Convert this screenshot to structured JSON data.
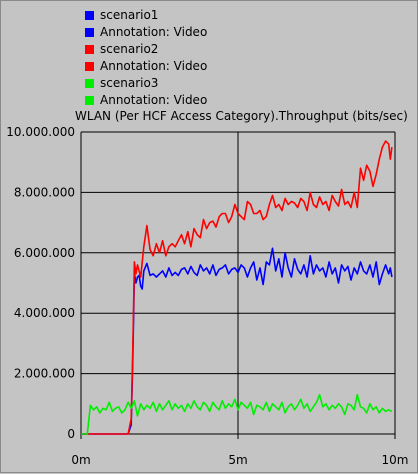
{
  "legend": [
    {
      "label": "scenario1",
      "color": "#0000ff"
    },
    {
      "label": "Annotation: Video",
      "color": "#0000ff"
    },
    {
      "label": "scenario2",
      "color": "#ff0000"
    },
    {
      "label": "Annotation: Video",
      "color": "#ff0000"
    },
    {
      "label": "scenario3",
      "color": "#00ee00"
    },
    {
      "label": "Annotation: Video",
      "color": "#00ee00"
    }
  ],
  "chart_data": {
    "type": "line",
    "title": "WLAN (Per HCF Access Category).Throughput (bits/sec)",
    "xlabel": "",
    "ylabel": "",
    "xlim": [
      0,
      10
    ],
    "ylim": [
      0,
      10000000
    ],
    "x_ticks": [
      0,
      5,
      10
    ],
    "x_tick_labels": [
      "0m",
      "5m",
      "10m"
    ],
    "y_ticks": [
      0,
      2000000,
      4000000,
      6000000,
      8000000,
      10000000
    ],
    "y_tick_labels": [
      "0",
      "2.000.000",
      "4.000.000",
      "6.000.000",
      "8.000.000",
      "10.000.000"
    ],
    "grid": true,
    "series": [
      {
        "name": "scenario1",
        "color": "#0000ff",
        "x": [
          0,
          1.5,
          1.6,
          1.65,
          1.7,
          1.75,
          1.8,
          1.85,
          1.9,
          1.95,
          2.0,
          2.1,
          2.2,
          2.3,
          2.4,
          2.5,
          2.6,
          2.7,
          2.8,
          2.9,
          3.0,
          3.1,
          3.2,
          3.3,
          3.4,
          3.5,
          3.6,
          3.7,
          3.8,
          3.9,
          4.0,
          4.1,
          4.2,
          4.3,
          4.4,
          4.5,
          4.6,
          4.7,
          4.8,
          4.9,
          5.0,
          5.1,
          5.2,
          5.3,
          5.4,
          5.5,
          5.6,
          5.7,
          5.8,
          5.9,
          6.0,
          6.1,
          6.2,
          6.3,
          6.4,
          6.5,
          6.6,
          6.7,
          6.8,
          6.9,
          7.0,
          7.1,
          7.2,
          7.3,
          7.4,
          7.5,
          7.6,
          7.7,
          7.8,
          7.9,
          8.0,
          8.1,
          8.2,
          8.3,
          8.4,
          8.5,
          8.6,
          8.7,
          8.8,
          8.9,
          9.0,
          9.1,
          9.2,
          9.3,
          9.4,
          9.5,
          9.6,
          9.7,
          9.8,
          9.85,
          9.9
        ],
        "values": [
          0,
          0,
          300000,
          2500000,
          5300000,
          5000000,
          5200000,
          5250000,
          4900000,
          4800000,
          5400000,
          5650000,
          5250000,
          5300000,
          5200000,
          5300000,
          5400000,
          5200000,
          5500000,
          5250000,
          5350000,
          5250000,
          5450000,
          5500000,
          5300000,
          5550000,
          5350000,
          5250000,
          5600000,
          5400000,
          5500000,
          5300000,
          5600000,
          5250000,
          5450000,
          5500000,
          5600000,
          5300000,
          5450000,
          5500000,
          5350000,
          5600000,
          5500000,
          5200000,
          5500000,
          5700000,
          5100000,
          5500000,
          4950000,
          5700000,
          5600000,
          6150000,
          5400000,
          5800000,
          5200000,
          6000000,
          5500000,
          5200000,
          5800000,
          5450000,
          5300000,
          5600000,
          5200000,
          5900000,
          5300000,
          5600000,
          5400000,
          5500000,
          5200000,
          5700000,
          5300000,
          5500000,
          5000000,
          5600000,
          5400000,
          5550000,
          5100000,
          5500000,
          5300000,
          5700000,
          5400000,
          5300000,
          5600000,
          5200000,
          5700000,
          4950000,
          5300000,
          5600000,
          5300000,
          5500000,
          5200000
        ]
      },
      {
        "name": "scenario2",
        "color": "#ff0000",
        "x": [
          0,
          1.5,
          1.6,
          1.65,
          1.7,
          1.75,
          1.8,
          1.85,
          1.9,
          2.0,
          2.1,
          2.2,
          2.3,
          2.4,
          2.5,
          2.6,
          2.7,
          2.8,
          2.9,
          3.0,
          3.1,
          3.2,
          3.3,
          3.4,
          3.5,
          3.6,
          3.7,
          3.8,
          3.9,
          4.0,
          4.1,
          4.2,
          4.3,
          4.4,
          4.5,
          4.6,
          4.7,
          4.8,
          4.9,
          5.0,
          5.1,
          5.2,
          5.3,
          5.4,
          5.5,
          5.6,
          5.7,
          5.8,
          5.9,
          6.0,
          6.1,
          6.2,
          6.3,
          6.4,
          6.5,
          6.6,
          6.7,
          6.8,
          6.9,
          7.0,
          7.1,
          7.2,
          7.3,
          7.4,
          7.5,
          7.6,
          7.7,
          7.8,
          7.9,
          8.0,
          8.1,
          8.2,
          8.3,
          8.4,
          8.5,
          8.6,
          8.7,
          8.8,
          8.9,
          9.0,
          9.1,
          9.2,
          9.3,
          9.4,
          9.5,
          9.6,
          9.7,
          9.8,
          9.85,
          9.9
        ],
        "values": [
          0,
          0,
          500000,
          2800000,
          5700000,
          5300000,
          5600000,
          5400000,
          5200000,
          6200000,
          6900000,
          6100000,
          5900000,
          6300000,
          6000000,
          6400000,
          5900000,
          6200000,
          6300000,
          6200000,
          6400000,
          6600000,
          6300000,
          6700000,
          6200000,
          6800000,
          6600000,
          6500000,
          7100000,
          6800000,
          7000000,
          7050000,
          6850000,
          7200000,
          7300000,
          7300000,
          7000000,
          7200000,
          7600000,
          7300000,
          7200000,
          7100000,
          7700000,
          7600000,
          7300000,
          7300000,
          7400000,
          7100000,
          7200000,
          7600000,
          7900000,
          7500000,
          7600000,
          7400000,
          7800000,
          7600000,
          7700000,
          7650000,
          7500000,
          7800000,
          7700000,
          7400000,
          8000000,
          7600000,
          7500000,
          7850000,
          7600000,
          7700000,
          7400000,
          7900000,
          7700000,
          7550000,
          8100000,
          7600000,
          7700000,
          7500000,
          8000000,
          7500000,
          8800000,
          8400000,
          8900000,
          8700000,
          8200000,
          8600000,
          9100000,
          9500000,
          9700000,
          9600000,
          9100000,
          9500000
        ]
      },
      {
        "name": "scenario3",
        "color": "#00ee00",
        "x": [
          0,
          0.2,
          0.3,
          0.4,
          0.5,
          0.6,
          0.7,
          0.8,
          0.9,
          1.0,
          1.1,
          1.2,
          1.3,
          1.4,
          1.5,
          1.6,
          1.7,
          1.8,
          1.9,
          2.0,
          2.1,
          2.2,
          2.3,
          2.4,
          2.5,
          2.6,
          2.7,
          2.8,
          2.9,
          3.0,
          3.1,
          3.2,
          3.3,
          3.4,
          3.5,
          3.6,
          3.7,
          3.8,
          3.9,
          4.0,
          4.1,
          4.2,
          4.3,
          4.4,
          4.5,
          4.6,
          4.7,
          4.8,
          4.9,
          5.0,
          5.1,
          5.2,
          5.3,
          5.4,
          5.5,
          5.6,
          5.7,
          5.8,
          5.9,
          6.0,
          6.1,
          6.2,
          6.3,
          6.4,
          6.5,
          6.6,
          6.7,
          6.8,
          6.9,
          7.0,
          7.1,
          7.2,
          7.3,
          7.4,
          7.5,
          7.6,
          7.7,
          7.8,
          7.9,
          8.0,
          8.1,
          8.2,
          8.3,
          8.4,
          8.5,
          8.6,
          8.7,
          8.8,
          8.9,
          9.0,
          9.1,
          9.2,
          9.3,
          9.4,
          9.5,
          9.6,
          9.7,
          9.8,
          9.9
        ],
        "values": [
          0,
          0,
          950000,
          800000,
          900000,
          700000,
          850000,
          800000,
          1050000,
          750000,
          850000,
          900000,
          700000,
          800000,
          1050000,
          850000,
          1100000,
          600000,
          1000000,
          800000,
          950000,
          850000,
          1050000,
          750000,
          1000000,
          800000,
          950000,
          1100000,
          800000,
          1000000,
          850000,
          950000,
          750000,
          1000000,
          850000,
          1100000,
          900000,
          800000,
          1050000,
          950000,
          750000,
          1050000,
          900000,
          800000,
          1100000,
          850000,
          1000000,
          900000,
          1150000,
          800000,
          1050000,
          950000,
          850000,
          1050000,
          650000,
          950000,
          900000,
          800000,
          1050000,
          750000,
          1000000,
          900000,
          800000,
          1050000,
          700000,
          900000,
          1000000,
          800000,
          950000,
          1150000,
          850000,
          1000000,
          750000,
          900000,
          1050000,
          1300000,
          900000,
          1000000,
          800000,
          950000,
          850000,
          1000000,
          900000,
          650000,
          1000000,
          950000,
          800000,
          1300000,
          900000,
          850000,
          700000,
          1000000,
          800000,
          900000,
          700000,
          850000,
          750000,
          800000,
          750000
        ]
      }
    ]
  }
}
